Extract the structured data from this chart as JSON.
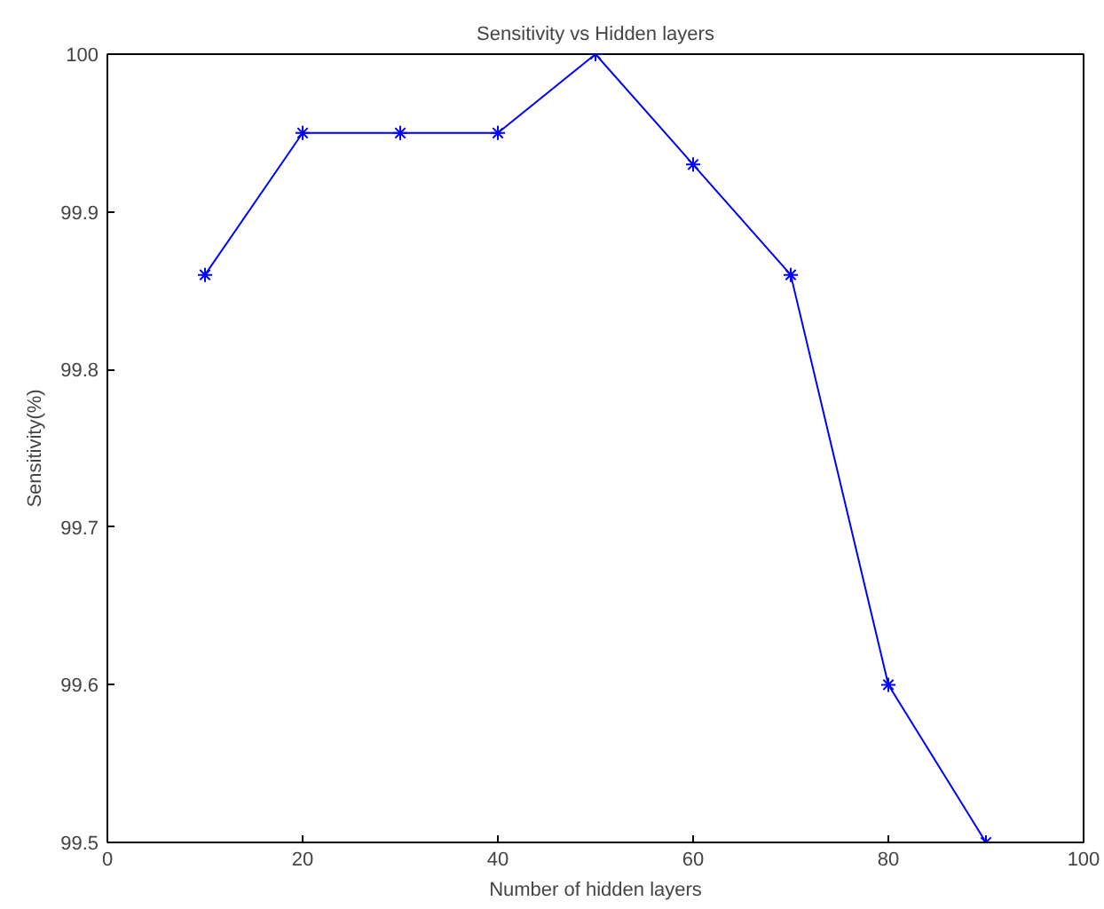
{
  "chart_data": {
    "type": "line",
    "title": "Sensitivity vs Hidden layers",
    "xlabel": "Number of hidden layers",
    "ylabel": "Sensitivity(%)",
    "x": [
      10,
      20,
      30,
      40,
      50,
      60,
      70,
      80,
      90
    ],
    "series": [
      {
        "color": "#0000ff",
        "values": [
          99.86,
          99.95,
          99.95,
          99.95,
          100,
          99.93,
          99.86,
          99.6,
          99.5
        ]
      }
    ],
    "xlim": [
      0,
      100
    ],
    "xticks": [
      0,
      20,
      40,
      60,
      80,
      100
    ],
    "ylim": [
      99.5,
      100
    ],
    "yticks": [
      99.5,
      99.6,
      99.7,
      99.8,
      99.9,
      {
        "value": 100,
        "label": "100"
      }
    ],
    "grid": false,
    "marker": "cross",
    "line_style": "solid"
  }
}
